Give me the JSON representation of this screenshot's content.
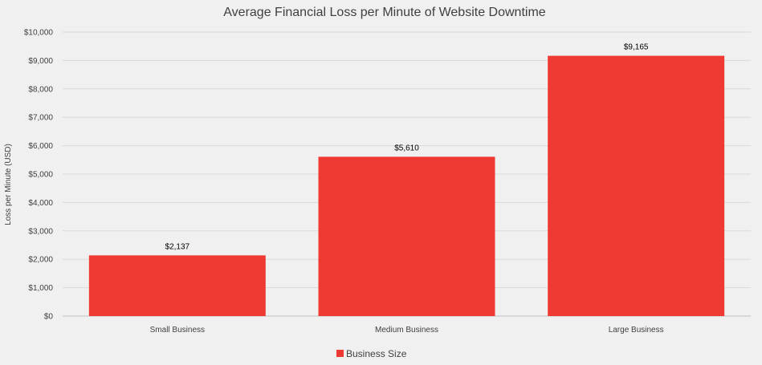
{
  "chart_data": {
    "type": "bar",
    "title": "Average Financial Loss per Minute of Website Downtime",
    "xlabel": "",
    "ylabel": "Loss per Minute (USD)",
    "categories": [
      "Small Business",
      "Medium Business",
      "Large Business"
    ],
    "series": [
      {
        "name": "Business Size",
        "values": [
          2137,
          5610,
          9165
        ],
        "color": "#ee3a33"
      }
    ],
    "data_labels": [
      "$2,137",
      "$5,610",
      "$9,165"
    ],
    "ylim": [
      0,
      10000
    ],
    "yticks": [
      0,
      1000,
      2000,
      3000,
      4000,
      5000,
      6000,
      7000,
      8000,
      9000,
      10000
    ],
    "ytick_labels": [
      "$0",
      "$1,000",
      "$2,000",
      "$3,000",
      "$4,000",
      "$5,000",
      "$6,000",
      "$7,000",
      "$8,000",
      "$9,000",
      "$10,000"
    ],
    "grid": true,
    "legend_position": "bottom"
  }
}
